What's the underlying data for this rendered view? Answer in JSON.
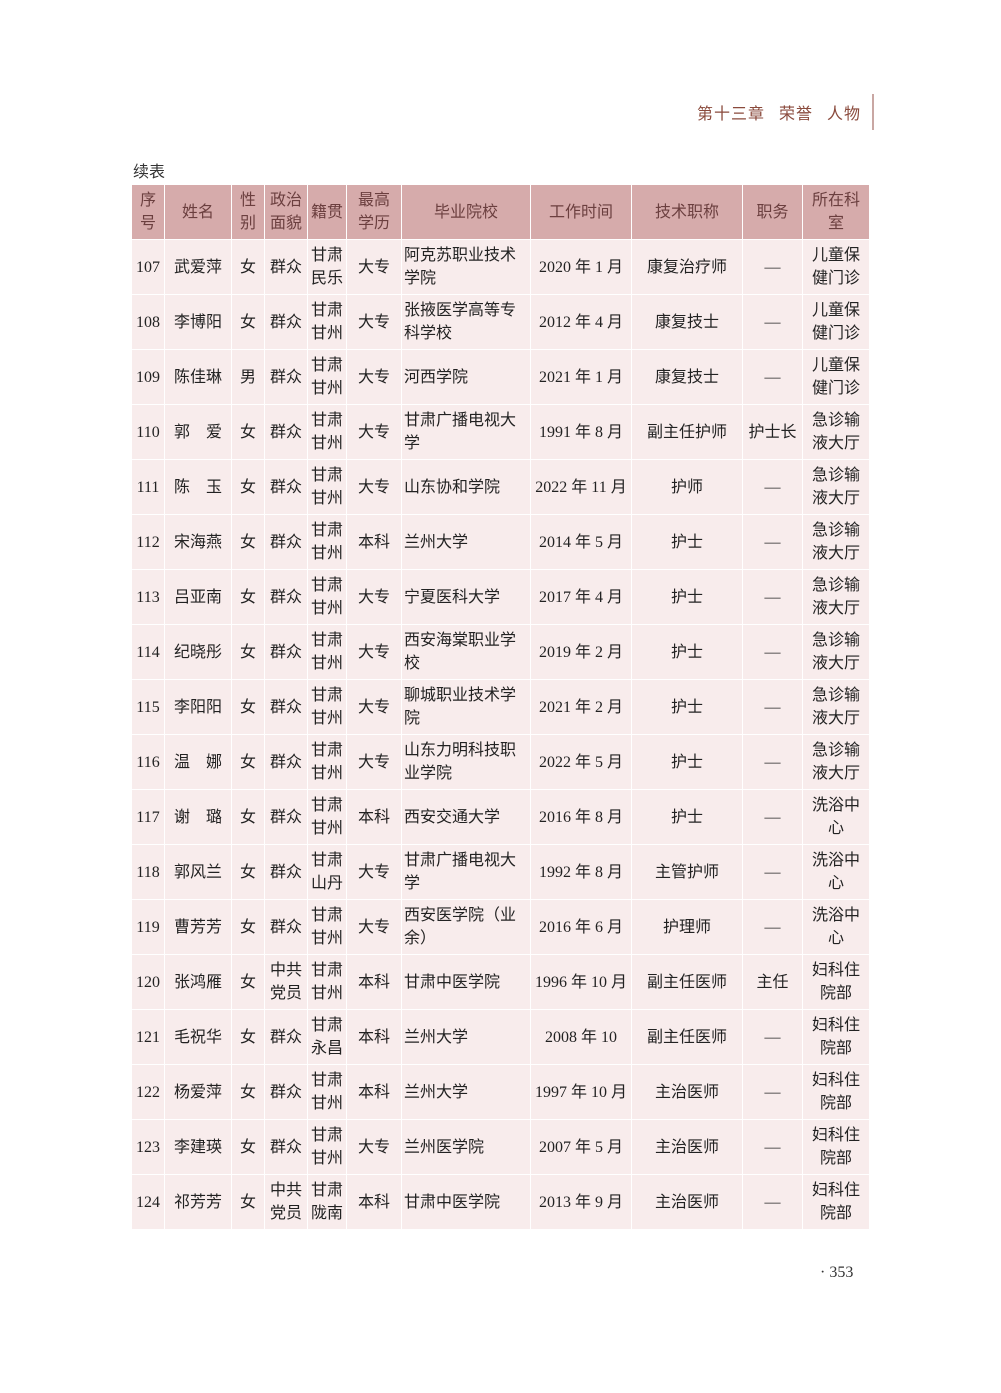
{
  "running_head": [
    "第十三章",
    "荣誉",
    "人物"
  ],
  "continued": "续表",
  "columns": [
    "序号",
    "姓名",
    "性别",
    "政治面貌",
    "籍贯",
    "最高学历",
    "毕业院校",
    "工作时间",
    "技术职称",
    "职务",
    "所在科室"
  ],
  "rows": [
    [
      "107",
      "武爱萍",
      "女",
      "群众",
      "甘肃民乐",
      "大专",
      "阿克苏职业技术学院",
      "2020 年 1 月",
      "康复治疗师",
      "—",
      "儿童保健门诊"
    ],
    [
      "108",
      "李博阳",
      "女",
      "群众",
      "甘肃甘州",
      "大专",
      "张掖医学高等专科学校",
      "2012 年 4 月",
      "康复技士",
      "—",
      "儿童保健门诊"
    ],
    [
      "109",
      "陈佳琳",
      "男",
      "群众",
      "甘肃甘州",
      "大专",
      "河西学院",
      "2021 年 1 月",
      "康复技士",
      "—",
      "儿童保健门诊"
    ],
    [
      "110",
      "郭　爱",
      "女",
      "群众",
      "甘肃甘州",
      "大专",
      "甘肃广播电视大学",
      "1991 年 8 月",
      "副主任护师",
      "护士长",
      "急诊输液大厅"
    ],
    [
      "111",
      "陈　玉",
      "女",
      "群众",
      "甘肃甘州",
      "大专",
      "山东协和学院",
      "2022 年 11 月",
      "护师",
      "—",
      "急诊输液大厅"
    ],
    [
      "112",
      "宋海燕",
      "女",
      "群众",
      "甘肃甘州",
      "本科",
      "兰州大学",
      "2014 年 5 月",
      "护士",
      "—",
      "急诊输液大厅"
    ],
    [
      "113",
      "吕亚南",
      "女",
      "群众",
      "甘肃甘州",
      "大专",
      "宁夏医科大学",
      "2017 年 4 月",
      "护士",
      "—",
      "急诊输液大厅"
    ],
    [
      "114",
      "纪晓彤",
      "女",
      "群众",
      "甘肃甘州",
      "大专",
      "西安海棠职业学校",
      "2019 年 2 月",
      "护士",
      "—",
      "急诊输液大厅"
    ],
    [
      "115",
      "李阳阳",
      "女",
      "群众",
      "甘肃甘州",
      "大专",
      "聊城职业技术学院",
      "2021 年 2 月",
      "护士",
      "—",
      "急诊输液大厅"
    ],
    [
      "116",
      "温　娜",
      "女",
      "群众",
      "甘肃甘州",
      "大专",
      "山东力明科技职业学院",
      "2022 年 5 月",
      "护士",
      "—",
      "急诊输液大厅"
    ],
    [
      "117",
      "谢　璐",
      "女",
      "群众",
      "甘肃甘州",
      "本科",
      "西安交通大学",
      "2016 年 8 月",
      "护士",
      "—",
      "洗浴中心"
    ],
    [
      "118",
      "郭风兰",
      "女",
      "群众",
      "甘肃山丹",
      "大专",
      "甘肃广播电视大学",
      "1992 年 8 月",
      "主管护师",
      "—",
      "洗浴中心"
    ],
    [
      "119",
      "曹芳芳",
      "女",
      "群众",
      "甘肃甘州",
      "大专",
      "西安医学院（业余）",
      "2016 年 6 月",
      "护理师",
      "—",
      "洗浴中心"
    ],
    [
      "120",
      "张鸿雁",
      "女",
      "中共党员",
      "甘肃甘州",
      "本科",
      "甘肃中医学院",
      "1996 年 10 月",
      "副主任医师",
      "主任",
      "妇科住院部"
    ],
    [
      "121",
      "毛祝华",
      "女",
      "群众",
      "甘肃永昌",
      "本科",
      "兰州大学",
      "2008 年 10",
      "副主任医师",
      "—",
      "妇科住院部"
    ],
    [
      "122",
      "杨爱萍",
      "女",
      "群众",
      "甘肃甘州",
      "本科",
      "兰州大学",
      "1997 年 10 月",
      "主治医师",
      "—",
      "妇科住院部"
    ],
    [
      "123",
      "李建瑛",
      "女",
      "群众",
      "甘肃甘州",
      "大专",
      "兰州医学院",
      "2007 年 5 月",
      "主治医师",
      "—",
      "妇科住院部"
    ],
    [
      "124",
      "祁芳芳",
      "女",
      "中共党员",
      "甘肃陇南",
      "本科",
      "甘肃中医学院",
      "2013 年 9 月",
      "主治医师",
      "—",
      "妇科住院部"
    ]
  ],
  "folio": "· 353",
  "colors": {
    "header_bg": "#d6abab",
    "row_bg": "#f8ecec",
    "accent": "#8a4a3c"
  }
}
